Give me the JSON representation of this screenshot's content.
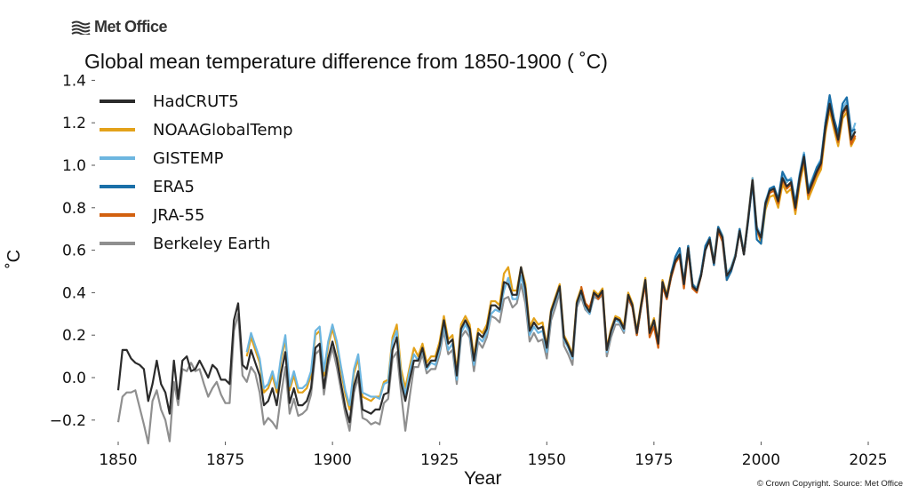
{
  "logo": {
    "text": "Met Office"
  },
  "copyright": "© Crown Copyright. Source: Met Office",
  "chart_data": {
    "type": "line",
    "title": "Global mean temperature difference from 1850-1900 ( ˚C)",
    "xlabel": "Year",
    "ylabel": "˚C",
    "xlim": [
      1850,
      2025
    ],
    "ylim": [
      -0.3,
      1.4
    ],
    "xticks": [
      1850,
      1875,
      1900,
      1925,
      1950,
      1975,
      2000,
      2025
    ],
    "yticks": [
      -0.2,
      0.0,
      0.2,
      0.4,
      0.6,
      0.8,
      1.0,
      1.2,
      1.4
    ],
    "ytick_labels": [
      "−0.2",
      "0.0",
      "0.2",
      "0.4",
      "0.6",
      "0.8",
      "1.0",
      "1.2",
      "1.4"
    ],
    "grid": false,
    "legend_position": "top-left",
    "series": [
      {
        "name": "HadCRUT5",
        "color": "#2b2b2b",
        "start": 1850,
        "values": [
          -0.06,
          0.13,
          0.13,
          0.09,
          0.07,
          0.06,
          0.04,
          -0.11,
          -0.03,
          0.08,
          -0.03,
          -0.07,
          -0.17,
          0.08,
          -0.1,
          0.08,
          0.1,
          0.03,
          0.04,
          0.08,
          0.04,
          0.0,
          0.06,
          0.04,
          -0.01,
          -0.01,
          -0.03,
          0.27,
          0.35,
          0.06,
          0.04,
          0.13,
          0.07,
          0.01,
          -0.13,
          -0.11,
          -0.05,
          -0.13,
          0.02,
          0.12,
          -0.12,
          -0.05,
          -0.13,
          -0.13,
          -0.11,
          -0.05,
          0.14,
          0.16,
          -0.05,
          0.09,
          0.17,
          0.09,
          -0.03,
          -0.14,
          -0.21,
          -0.04,
          0.03,
          -0.15,
          -0.16,
          -0.17,
          -0.15,
          -0.15,
          -0.08,
          -0.07,
          0.13,
          0.19,
          -0.02,
          -0.11,
          -0.01,
          0.08,
          0.08,
          0.14,
          0.05,
          0.08,
          0.08,
          0.15,
          0.27,
          0.16,
          0.18,
          0.01,
          0.23,
          0.27,
          0.23,
          0.08,
          0.21,
          0.19,
          0.23,
          0.34,
          0.34,
          0.32,
          0.45,
          0.44,
          0.39,
          0.39,
          0.52,
          0.42,
          0.22,
          0.26,
          0.23,
          0.24,
          0.14,
          0.31,
          0.37,
          0.43,
          0.19,
          0.15,
          0.1,
          0.35,
          0.41,
          0.34,
          0.31,
          0.4,
          0.38,
          0.41,
          0.13,
          0.22,
          0.28,
          0.27,
          0.23,
          0.39,
          0.34,
          0.21,
          0.34,
          0.46,
          0.21,
          0.27,
          0.16,
          0.45,
          0.38,
          0.48,
          0.55,
          0.58,
          0.44,
          0.61,
          0.43,
          0.41,
          0.48,
          0.6,
          0.65,
          0.54,
          0.7,
          0.66,
          0.48,
          0.51,
          0.57,
          0.69,
          0.58,
          0.75,
          0.93,
          0.7,
          0.66,
          0.82,
          0.88,
          0.89,
          0.83,
          0.94,
          0.9,
          0.92,
          0.8,
          0.94,
          1.04,
          0.87,
          0.92,
          0.97,
          1.01,
          1.18,
          1.29,
          1.2,
          1.12,
          1.25,
          1.28,
          1.12,
          1.16
        ]
      },
      {
        "name": "NOAAGlobalTemp",
        "color": "#e3a21a",
        "start": 1880,
        "values": [
          0.1,
          0.19,
          0.13,
          0.07,
          -0.07,
          -0.05,
          0.01,
          -0.07,
          0.08,
          0.18,
          -0.06,
          0.01,
          -0.07,
          -0.07,
          -0.05,
          0.01,
          0.2,
          0.22,
          0.01,
          0.15,
          0.23,
          0.15,
          0.03,
          -0.08,
          -0.15,
          0.02,
          0.09,
          -0.09,
          -0.1,
          -0.11,
          -0.09,
          -0.09,
          -0.02,
          -0.01,
          0.19,
          0.25,
          0.04,
          -0.05,
          0.05,
          0.14,
          0.1,
          0.16,
          0.07,
          0.1,
          0.1,
          0.17,
          0.29,
          0.18,
          0.2,
          0.03,
          0.25,
          0.29,
          0.25,
          0.1,
          0.23,
          0.21,
          0.25,
          0.36,
          0.36,
          0.34,
          0.49,
          0.52,
          0.41,
          0.41,
          0.52,
          0.44,
          0.24,
          0.28,
          0.25,
          0.26,
          0.15,
          0.32,
          0.38,
          0.44,
          0.2,
          0.16,
          0.11,
          0.36,
          0.42,
          0.35,
          0.32,
          0.41,
          0.39,
          0.42,
          0.14,
          0.23,
          0.29,
          0.28,
          0.24,
          0.4,
          0.35,
          0.22,
          0.35,
          0.47,
          0.22,
          0.28,
          0.17,
          0.46,
          0.39,
          0.49,
          0.56,
          0.59,
          0.45,
          0.62,
          0.44,
          0.42,
          0.49,
          0.61,
          0.66,
          0.55,
          0.71,
          0.67,
          0.49,
          0.52,
          0.58,
          0.7,
          0.59,
          0.76,
          0.94,
          0.71,
          0.63,
          0.79,
          0.85,
          0.86,
          0.8,
          0.91,
          0.87,
          0.89,
          0.77,
          0.91,
          1.01,
          0.84,
          0.89,
          0.94,
          0.98,
          1.15,
          1.26,
          1.17,
          1.09,
          1.22,
          1.25,
          1.09,
          1.13
        ]
      },
      {
        "name": "GISTEMP",
        "color": "#6db6e0",
        "start": 1880,
        "values": [
          0.12,
          0.21,
          0.15,
          0.09,
          -0.05,
          -0.03,
          0.03,
          -0.05,
          0.1,
          0.2,
          -0.04,
          0.03,
          -0.05,
          -0.05,
          -0.03,
          0.03,
          0.22,
          0.24,
          0.03,
          0.17,
          0.25,
          0.17,
          0.05,
          -0.06,
          -0.13,
          0.04,
          0.11,
          -0.07,
          -0.08,
          -0.09,
          -0.09,
          -0.1,
          -0.03,
          -0.02,
          0.17,
          0.22,
          0.01,
          -0.08,
          0.03,
          0.11,
          0.08,
          0.13,
          0.04,
          0.07,
          0.06,
          0.13,
          0.25,
          0.13,
          0.16,
          -0.01,
          0.21,
          0.25,
          0.21,
          0.06,
          0.19,
          0.17,
          0.21,
          0.3,
          0.32,
          0.31,
          0.41,
          0.47,
          0.37,
          0.37,
          0.48,
          0.39,
          0.2,
          0.24,
          0.21,
          0.22,
          0.12,
          0.3,
          0.36,
          0.42,
          0.18,
          0.14,
          0.09,
          0.34,
          0.4,
          0.33,
          0.3,
          0.39,
          0.37,
          0.4,
          0.12,
          0.21,
          0.27,
          0.26,
          0.22,
          0.38,
          0.33,
          0.2,
          0.33,
          0.45,
          0.2,
          0.26,
          0.15,
          0.44,
          0.37,
          0.47,
          0.56,
          0.59,
          0.45,
          0.62,
          0.44,
          0.42,
          0.49,
          0.61,
          0.66,
          0.55,
          0.71,
          0.67,
          0.49,
          0.52,
          0.58,
          0.7,
          0.59,
          0.76,
          0.94,
          0.71,
          0.67,
          0.83,
          0.89,
          0.9,
          0.84,
          0.96,
          0.92,
          0.94,
          0.82,
          0.96,
          1.06,
          0.89,
          0.94,
          0.99,
          1.03,
          1.2,
          1.31,
          1.22,
          1.14,
          1.27,
          1.3,
          1.14,
          1.2
        ]
      },
      {
        "name": "ERA5",
        "color": "#1a6fa8",
        "start": 1979,
        "values": [
          0.49,
          0.57,
          0.61,
          0.44,
          0.62,
          0.44,
          0.41,
          0.49,
          0.62,
          0.66,
          0.53,
          0.71,
          0.66,
          0.46,
          0.5,
          0.57,
          0.7,
          0.58,
          0.74,
          0.92,
          0.65,
          0.63,
          0.81,
          0.89,
          0.9,
          0.84,
          0.97,
          0.93,
          0.93,
          0.82,
          0.95,
          1.05,
          0.88,
          0.93,
          0.99,
          1.02,
          1.2,
          1.33,
          1.22,
          1.15,
          1.29,
          1.32,
          1.16,
          1.17
        ]
      },
      {
        "name": "JRA-55",
        "color": "#d2600f",
        "start": 1958,
        "values": [
          0.43,
          0.35,
          0.33,
          0.4,
          0.37,
          0.4,
          0.13,
          0.22,
          0.28,
          0.27,
          0.23,
          0.38,
          0.33,
          0.2,
          0.33,
          0.44,
          0.19,
          0.24,
          0.14,
          0.43,
          0.37,
          0.47,
          0.54,
          0.57,
          0.42,
          0.6,
          0.42,
          0.4,
          0.48,
          0.61,
          0.64,
          0.53,
          0.69,
          0.64,
          0.46,
          0.5,
          0.57,
          0.69,
          0.58,
          0.75,
          0.93,
          0.69,
          0.65,
          0.81,
          0.87,
          0.88,
          0.82,
          0.93,
          0.89,
          0.91,
          0.79,
          0.93,
          1.03,
          0.86,
          0.91,
          0.96,
          1.0,
          1.17,
          1.28,
          1.19,
          1.11,
          1.24,
          1.27,
          1.1,
          1.14
        ]
      },
      {
        "name": "Berkeley Earth",
        "color": "#8f8f8f",
        "start": 1850,
        "values": [
          -0.21,
          -0.09,
          -0.07,
          -0.07,
          -0.06,
          -0.14,
          -0.22,
          -0.31,
          -0.11,
          -0.06,
          -0.15,
          -0.2,
          -0.3,
          -0.02,
          -0.13,
          0.04,
          0.03,
          0.07,
          0.03,
          0.04,
          -0.03,
          -0.09,
          -0.05,
          -0.02,
          -0.08,
          -0.12,
          -0.12,
          0.22,
          0.3,
          0.01,
          -0.02,
          0.05,
          0.02,
          -0.07,
          -0.22,
          -0.19,
          -0.21,
          -0.24,
          -0.08,
          0.05,
          -0.17,
          -0.1,
          -0.18,
          -0.17,
          -0.15,
          -0.08,
          0.11,
          0.13,
          -0.08,
          0.06,
          0.14,
          0.05,
          -0.06,
          -0.17,
          -0.25,
          -0.07,
          0.0,
          -0.19,
          -0.2,
          -0.22,
          -0.21,
          -0.22,
          -0.12,
          -0.1,
          0.09,
          0.12,
          -0.07,
          -0.25,
          -0.09,
          0.05,
          0.05,
          0.11,
          0.02,
          0.04,
          0.04,
          0.11,
          0.22,
          0.11,
          0.13,
          -0.03,
          0.19,
          0.22,
          0.19,
          0.03,
          0.17,
          0.14,
          0.19,
          0.29,
          0.28,
          0.26,
          0.37,
          0.38,
          0.33,
          0.35,
          0.44,
          0.35,
          0.17,
          0.21,
          0.17,
          0.18,
          0.09,
          0.27,
          0.33,
          0.4,
          0.15,
          0.11,
          0.06,
          0.33,
          0.38,
          0.32,
          0.3,
          0.38,
          0.37,
          0.39,
          0.1,
          0.19,
          0.25,
          0.25,
          0.21,
          0.37,
          0.33,
          0.2,
          0.33,
          0.45,
          0.2,
          0.26,
          0.16,
          0.45,
          0.38,
          0.47,
          0.55,
          0.58,
          0.44,
          0.61,
          0.43,
          0.41,
          0.48,
          0.6,
          0.65,
          0.54,
          0.7,
          0.66,
          0.48,
          0.51,
          0.57,
          0.69,
          0.58,
          0.75,
          0.92,
          0.69,
          0.66,
          0.82,
          0.88,
          0.89,
          0.83,
          0.94,
          0.9,
          0.92,
          0.8,
          0.94,
          1.04,
          0.88,
          0.92,
          0.98,
          1.02,
          1.18,
          1.3,
          1.21,
          1.13,
          1.26,
          1.29,
          1.13,
          1.16
        ]
      }
    ],
    "draw_order": [
      "Berkeley Earth",
      "NOAAGlobalTemp",
      "GISTEMP",
      "JRA-55",
      "ERA5",
      "HadCRUT5"
    ]
  }
}
